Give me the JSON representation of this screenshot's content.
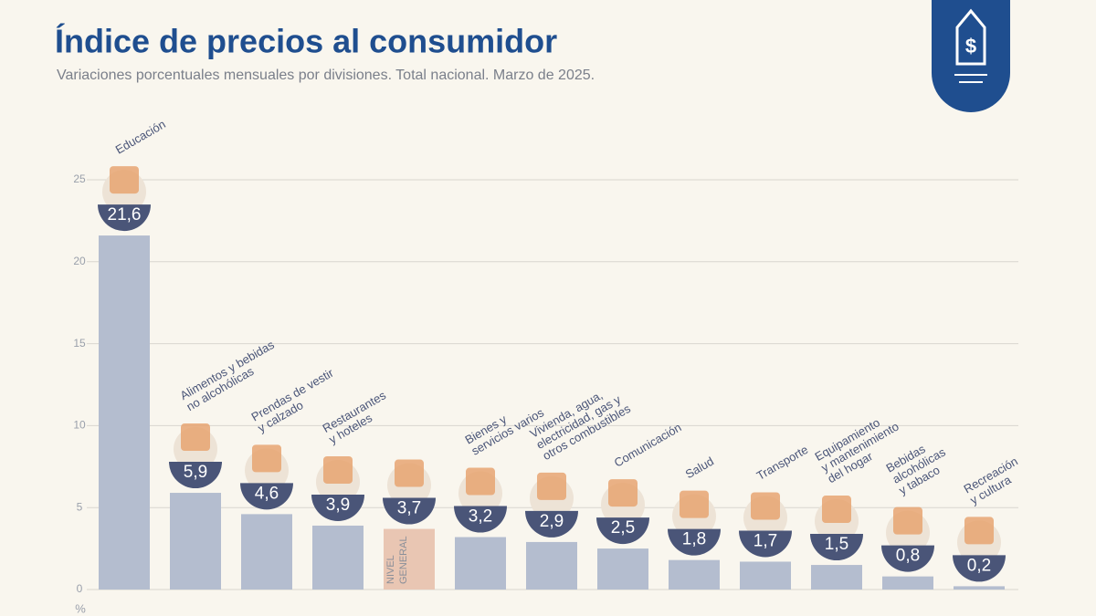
{
  "chart_data": {
    "type": "bar",
    "title": "Índice de precios al consumidor",
    "subtitle": "Variaciones porcentuales mensuales por divisiones. Total nacional. Marzo de 2025.",
    "y_label": "%",
    "categories": [
      "Educación",
      "Alimentos y bebidas\nno alcohólicas",
      "Prendas de vestir\ny calzado",
      "Restaurantes\ny hoteles",
      "NIVEL\nGENERAL",
      "Bienes y\nservicios varios",
      "Vivienda, agua,\nelectricidad, gas y\notros combustibles",
      "Comunicación",
      "Salud",
      "Transporte",
      "Equipamiento\ny mantenimiento\ndel hogar",
      "Bebidas\nalcohólicas\ny tabaco",
      "Recreación\ny cultura"
    ],
    "values": [
      21.6,
      5.9,
      4.6,
      3.9,
      3.7,
      3.2,
      2.9,
      2.5,
      1.8,
      1.7,
      1.5,
      0.8,
      0.2
    ],
    "value_labels": [
      "21,6",
      "5,9",
      "4,6",
      "3,9",
      "3,7",
      "3,2",
      "2,9",
      "2,5",
      "1,8",
      "1,7",
      "1,5",
      "0,8",
      "0,2"
    ],
    "colors": [
      "#b4bdcf",
      "#b4bdcf",
      "#b4bdcf",
      "#b4bdcf",
      "#e9c6b3",
      "#b4bdcf",
      "#b4bdcf",
      "#b4bdcf",
      "#b4bdcf",
      "#b4bdcf",
      "#b4bdcf",
      "#b4bdcf",
      "#b4bdcf"
    ],
    "ylim": [
      0,
      25
    ],
    "yticks": [
      0,
      5,
      10,
      15,
      20,
      25
    ],
    "grid": true
  }
}
